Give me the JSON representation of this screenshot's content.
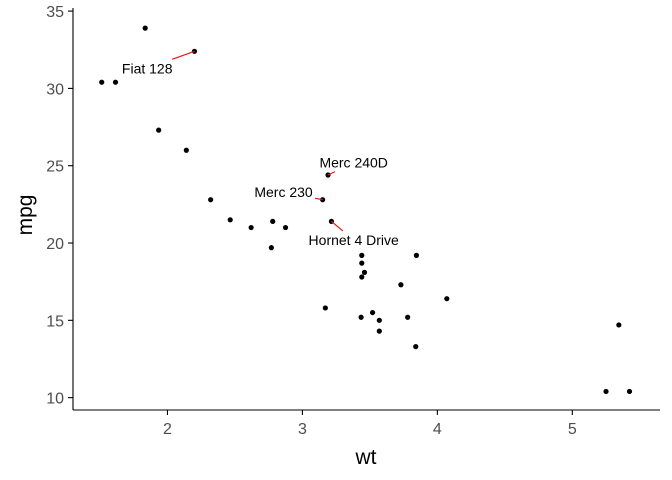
{
  "chart_data": {
    "type": "scatter",
    "title": "",
    "xlabel": "wt",
    "ylabel": "mpg",
    "xlim": [
      1.3,
      5.65
    ],
    "ylim": [
      9.2,
      35.2
    ],
    "xticks": [
      2,
      3,
      4,
      5
    ],
    "yticks": [
      10,
      15,
      20,
      25,
      30,
      35
    ],
    "grid": false,
    "legend": "none",
    "point_color": "#000000",
    "segment_color": "#e41a1c",
    "points": [
      {
        "x": 2.62,
        "y": 21.0
      },
      {
        "x": 2.875,
        "y": 21.0
      },
      {
        "x": 2.32,
        "y": 22.8
      },
      {
        "x": 3.215,
        "y": 21.4
      },
      {
        "x": 3.44,
        "y": 18.7
      },
      {
        "x": 3.46,
        "y": 18.1
      },
      {
        "x": 3.57,
        "y": 14.3
      },
      {
        "x": 3.19,
        "y": 24.4
      },
      {
        "x": 3.15,
        "y": 22.8
      },
      {
        "x": 3.44,
        "y": 19.2
      },
      {
        "x": 3.44,
        "y": 17.8
      },
      {
        "x": 4.07,
        "y": 16.4
      },
      {
        "x": 3.73,
        "y": 17.3
      },
      {
        "x": 3.78,
        "y": 15.2
      },
      {
        "x": 5.25,
        "y": 10.4
      },
      {
        "x": 5.424,
        "y": 10.4
      },
      {
        "x": 5.345,
        "y": 14.7
      },
      {
        "x": 2.2,
        "y": 32.4
      },
      {
        "x": 1.615,
        "y": 30.4
      },
      {
        "x": 1.835,
        "y": 33.9
      },
      {
        "x": 2.465,
        "y": 21.5
      },
      {
        "x": 3.52,
        "y": 15.5
      },
      {
        "x": 3.435,
        "y": 15.2
      },
      {
        "x": 3.84,
        "y": 13.3
      },
      {
        "x": 3.845,
        "y": 19.2
      },
      {
        "x": 1.935,
        "y": 27.3
      },
      {
        "x": 2.14,
        "y": 26.0
      },
      {
        "x": 1.513,
        "y": 30.4
      },
      {
        "x": 3.17,
        "y": 15.8
      },
      {
        "x": 2.77,
        "y": 19.7
      },
      {
        "x": 3.57,
        "y": 15.0
      },
      {
        "x": 2.78,
        "y": 21.4
      }
    ],
    "annotations": [
      {
        "label": "Fiat 128",
        "x": 2.2,
        "y": 32.4,
        "label_x": 1.85,
        "label_y": 31.3,
        "anchor": "middle"
      },
      {
        "label": "Merc 240D",
        "x": 3.19,
        "y": 24.4,
        "label_x": 3.38,
        "label_y": 25.2,
        "anchor": "middle"
      },
      {
        "label": "Merc 230",
        "x": 3.15,
        "y": 22.8,
        "label_x": 2.86,
        "label_y": 23.3,
        "anchor": "middle"
      },
      {
        "label": "Hornet 4 Drive",
        "x": 3.215,
        "y": 21.4,
        "label_x": 3.38,
        "label_y": 20.2,
        "anchor": "middle"
      }
    ]
  }
}
